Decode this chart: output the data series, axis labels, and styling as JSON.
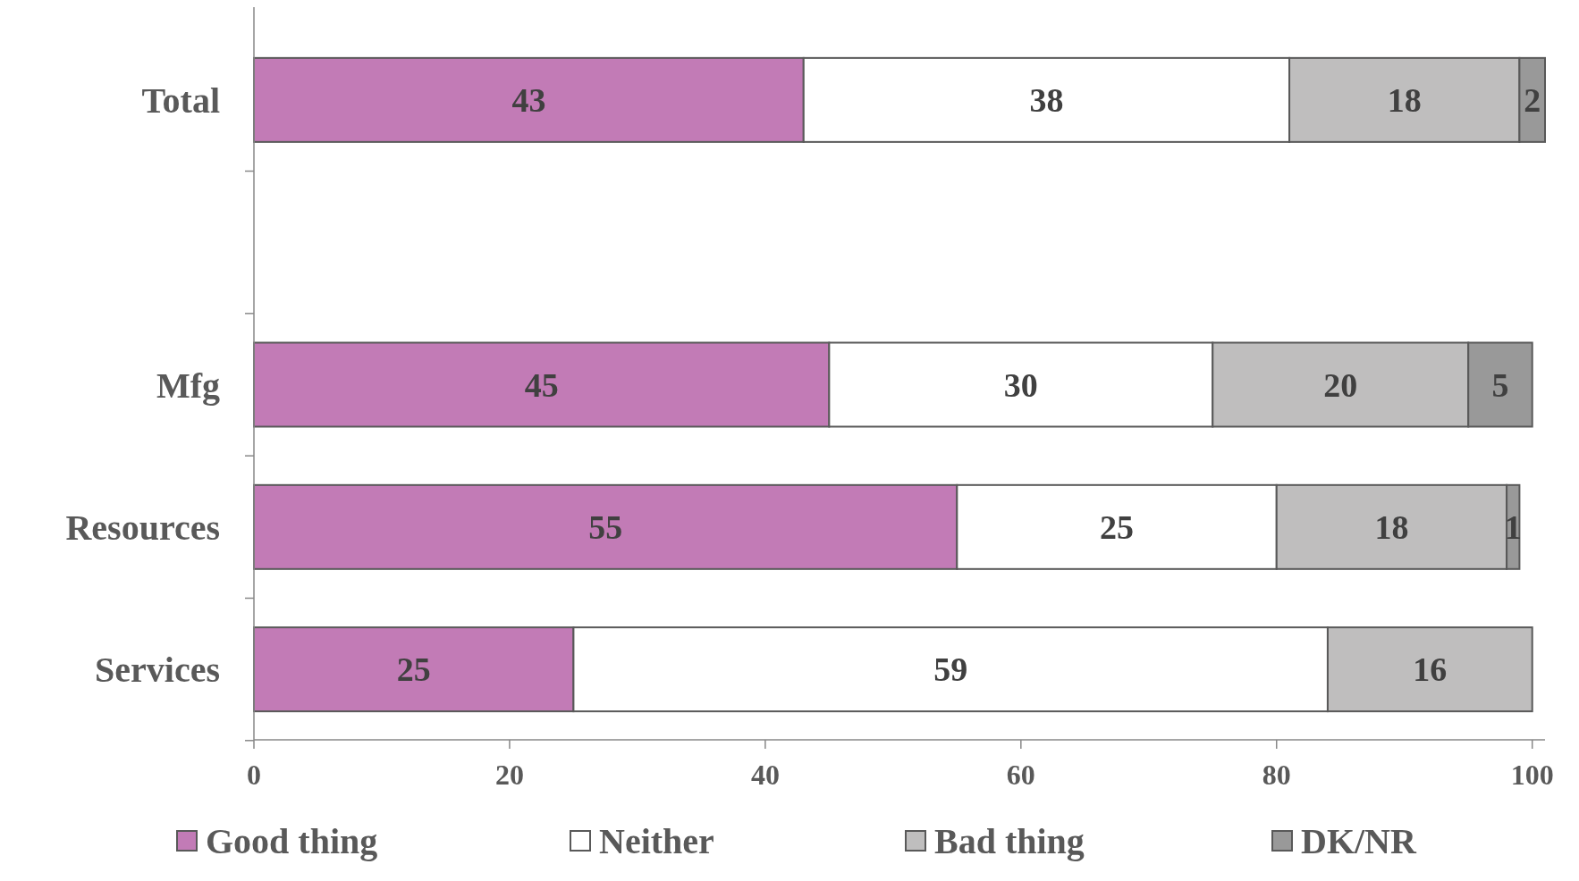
{
  "chart_data": {
    "type": "bar",
    "orientation": "horizontal",
    "stacked": true,
    "categories": [
      "Total",
      null,
      "Mfg",
      "Resources",
      "Services"
    ],
    "series": [
      {
        "name": "Good thing",
        "color": "#c27bb6",
        "values": [
          43,
          null,
          45,
          55,
          25
        ]
      },
      {
        "name": "Neither",
        "color": "#ffffff",
        "values": [
          38,
          null,
          30,
          25,
          59
        ]
      },
      {
        "name": "Bad thing",
        "color": "#bfbebe",
        "values": [
          18,
          null,
          20,
          18,
          16
        ]
      },
      {
        "name": "DK/NR",
        "color": "#999999",
        "values": [
          2,
          null,
          5,
          1,
          null
        ]
      }
    ],
    "xlim": [
      0,
      101
    ],
    "xticks": [
      0,
      20,
      40,
      60,
      80,
      100
    ],
    "data_labels": true,
    "legend": "bottom",
    "grid": false
  }
}
